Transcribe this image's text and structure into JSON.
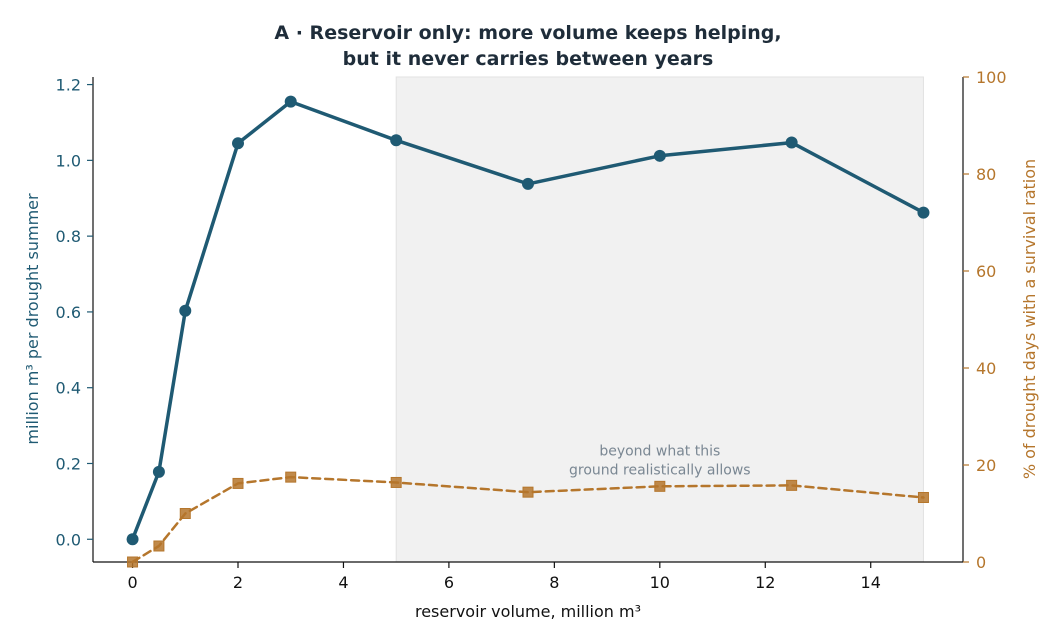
{
  "chart_data": {
    "type": "line",
    "title_lines": [
      "A · Reservoir only: more volume keeps helping,",
      "but it never carries between years"
    ],
    "xlabel": "reservoir volume, million m³",
    "ylabel_left": "million m³ per drought summer",
    "ylabel_right": "% of drought days with a survival ration",
    "xlim": [
      -0.75,
      15.75
    ],
    "ylim_left": [
      -0.06,
      1.22
    ],
    "ylim_right": [
      0,
      100
    ],
    "x_ticks": [
      0,
      2,
      4,
      6,
      8,
      10,
      12,
      14
    ],
    "x_tick_labels": [
      "0",
      "2",
      "4",
      "6",
      "8",
      "10",
      "12",
      "14"
    ],
    "y_left_ticks": [
      0.0,
      0.2,
      0.4,
      0.6,
      0.8,
      1.0,
      1.2
    ],
    "y_left_tick_labels": [
      "0.0",
      "0.2",
      "0.4",
      "0.6",
      "0.8",
      "1.0",
      "1.2"
    ],
    "y_right_ticks": [
      0,
      20,
      40,
      60,
      80,
      100
    ],
    "y_right_tick_labels": [
      "0",
      "20",
      "40",
      "60",
      "80",
      "100"
    ],
    "x": [
      0,
      0.5,
      1,
      2,
      3,
      5,
      7.5,
      10,
      12.5,
      15
    ],
    "series": [
      {
        "axis": "left",
        "style": "solid",
        "marker": "circle",
        "color": "#1f5a73",
        "values": [
          0.0,
          0.178,
          0.603,
          1.045,
          1.155,
          1.053,
          0.938,
          1.012,
          1.047,
          0.862
        ]
      },
      {
        "axis": "right",
        "style": "dashed",
        "marker": "square",
        "color": "#b5762c",
        "values": [
          0.0,
          3.3,
          10.0,
          16.2,
          17.5,
          16.4,
          14.4,
          15.6,
          15.8,
          13.3
        ]
      }
    ],
    "shaded_region": {
      "x_from": 5,
      "x_to": 15,
      "color": "#f1f1f1"
    },
    "annotation": {
      "lines": [
        "beyond what this",
        "ground realistically allows"
      ],
      "x": 10,
      "y_right": 18
    },
    "colors": {
      "left_axis": "#1f5a73",
      "right_axis": "#b5762c",
      "annotation": "#7a8793"
    },
    "grid": false
  }
}
